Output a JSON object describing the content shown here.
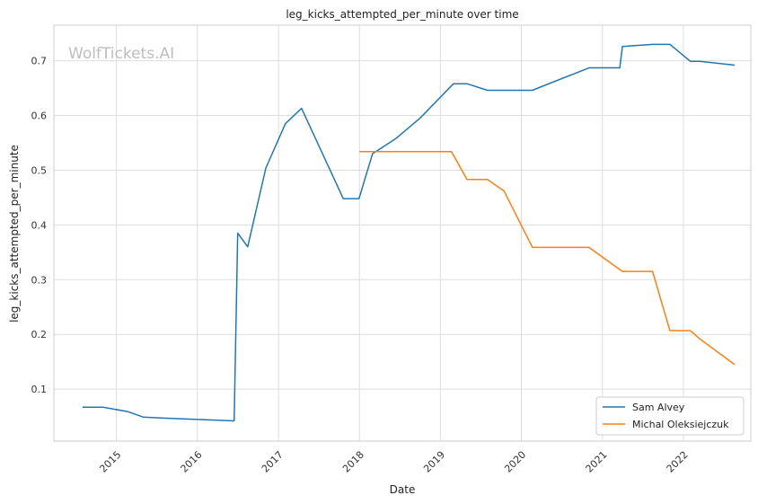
{
  "chart_data": {
    "type": "line",
    "title": "leg_kicks_attempted_per_minute over time",
    "xlabel": "Date",
    "ylabel": "leg_kicks_attempted_per_minute",
    "watermark": "WolfTickets.AI",
    "xlim": [
      "2014-03-25",
      "2022-11-01"
    ],
    "ylim": [
      0.005,
      0.765
    ],
    "x_ticks": [
      "2015",
      "2016",
      "2017",
      "2018",
      "2019",
      "2020",
      "2021",
      "2022"
    ],
    "y_ticks": [
      0.1,
      0.2,
      0.3,
      0.4,
      0.5,
      0.6,
      0.7
    ],
    "grid": true,
    "legend_position": "bottom-right",
    "series": [
      {
        "name": "Sam Alvey",
        "color": "#1f77b4",
        "points": [
          [
            "2014-08-01",
            0.067
          ],
          [
            "2014-11-01",
            0.067
          ],
          [
            "2015-02-20",
            0.059
          ],
          [
            "2015-05-01",
            0.049
          ],
          [
            "2015-08-01",
            0.047
          ],
          [
            "2016-06-15",
            0.042
          ],
          [
            "2016-07-01",
            0.385
          ],
          [
            "2016-08-15",
            0.36
          ],
          [
            "2016-11-05",
            0.504
          ],
          [
            "2017-02-01",
            0.585
          ],
          [
            "2017-04-15",
            0.613
          ],
          [
            "2017-10-20",
            0.448
          ],
          [
            "2017-12-30",
            0.448
          ],
          [
            "2018-03-01",
            0.53
          ],
          [
            "2018-06-15",
            0.558
          ],
          [
            "2018-10-01",
            0.595
          ],
          [
            "2019-03-01",
            0.658
          ],
          [
            "2019-05-01",
            0.658
          ],
          [
            "2019-08-01",
            0.646
          ],
          [
            "2020-02-20",
            0.646
          ],
          [
            "2020-11-01",
            0.687
          ],
          [
            "2021-03-20",
            0.687
          ],
          [
            "2021-04-01",
            0.726
          ],
          [
            "2021-08-15",
            0.73
          ],
          [
            "2021-11-01",
            0.73
          ],
          [
            "2022-02-01",
            0.699
          ],
          [
            "2022-03-15",
            0.699
          ],
          [
            "2022-08-20",
            0.692
          ]
        ]
      },
      {
        "name": "Michal Oleksiejczuk",
        "color": "#ff7f0e",
        "points": [
          [
            "2018-01-01",
            0.534
          ],
          [
            "2019-02-20",
            0.534
          ],
          [
            "2019-05-01",
            0.483
          ],
          [
            "2019-08-01",
            0.483
          ],
          [
            "2019-10-15",
            0.462
          ],
          [
            "2020-02-20",
            0.359
          ],
          [
            "2020-11-01",
            0.359
          ],
          [
            "2021-04-01",
            0.315
          ],
          [
            "2021-08-15",
            0.315
          ],
          [
            "2021-11-01",
            0.207
          ],
          [
            "2022-02-01",
            0.207
          ],
          [
            "2022-03-15",
            0.192
          ],
          [
            "2022-08-20",
            0.145
          ]
        ]
      }
    ]
  }
}
